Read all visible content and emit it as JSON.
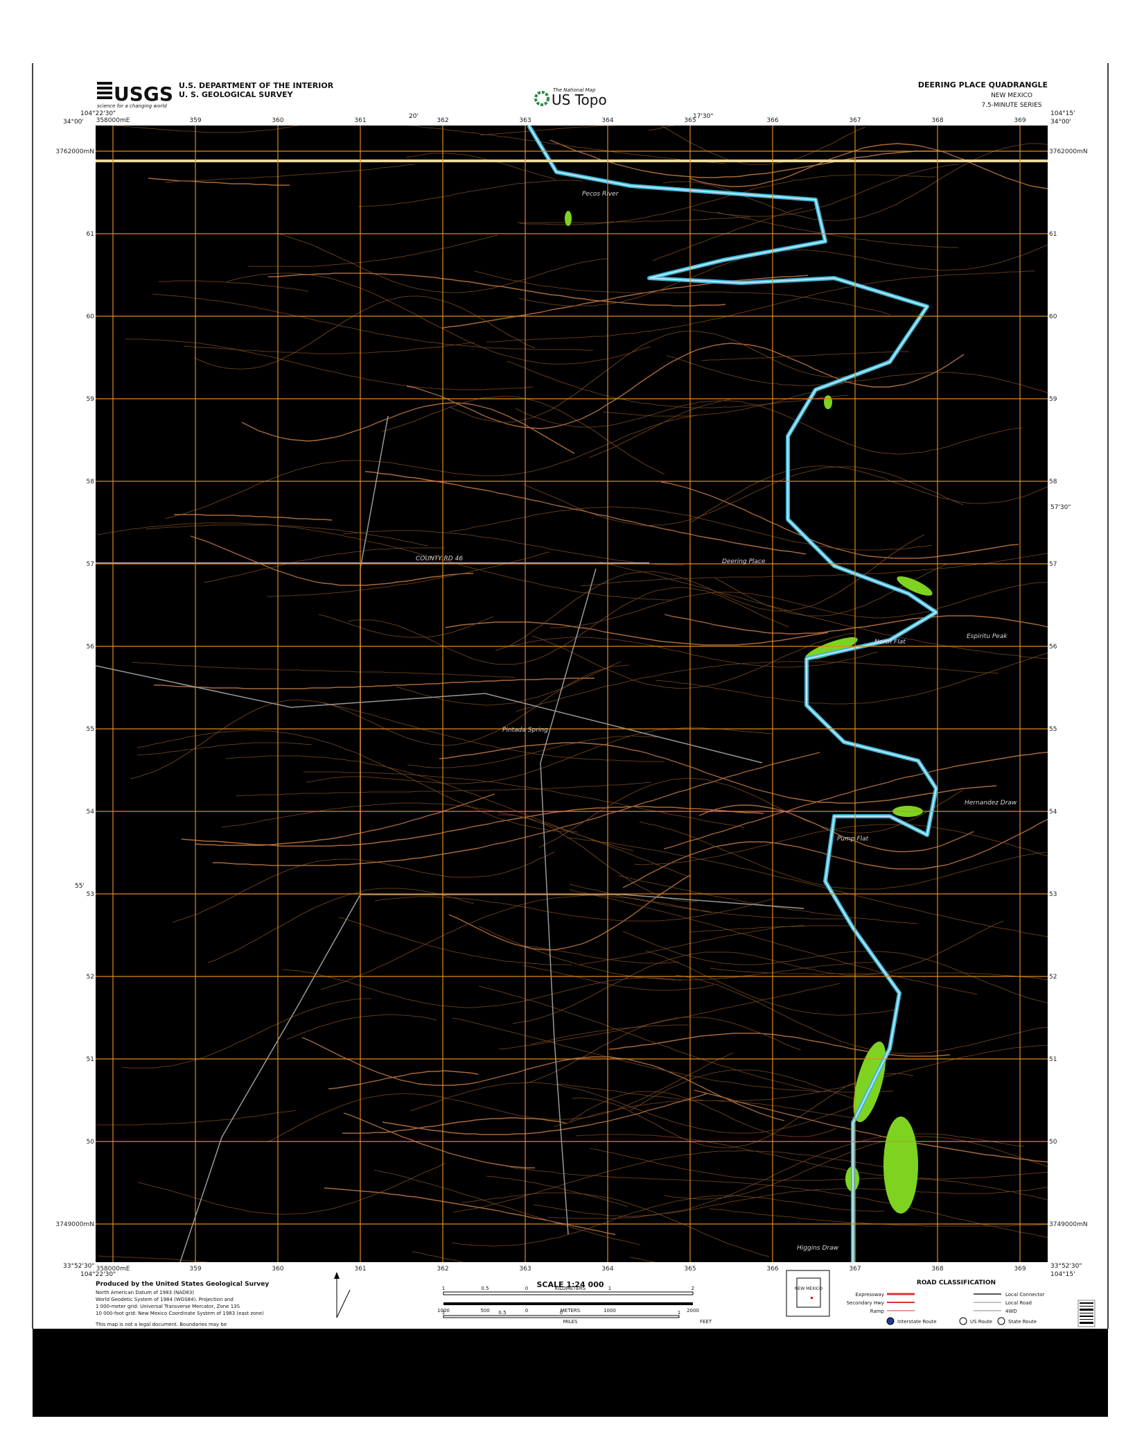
{
  "header": {
    "usgs": "USGS",
    "usgs_tagline": "science for a changing world",
    "agency": [
      "U.S. DEPARTMENT OF THE INTERIOR",
      "U. S. GEOLOGICAL SURVEY"
    ],
    "national_map": "The National Map",
    "us_topo": "US Topo",
    "quadrangle": "DEERING PLACE QUADRANGLE",
    "state": "NEW MEXICO",
    "series": "7.5-MINUTE SERIES"
  },
  "corners": {
    "nw_lon": "104°22'30\"",
    "nw_lat": "34°00'",
    "ne_lon": "104°15'",
    "ne_lat": "34°00'",
    "sw_lat": "33°52'30\"",
    "sw_lon": "104°22'30\"",
    "se_lat": "33°52'30\"",
    "se_lon": "104°15'"
  },
  "grid": {
    "easting": [
      "358000mE",
      "359",
      "360",
      "361",
      "362",
      "363",
      "364",
      "365",
      "366",
      "367",
      "368",
      "369"
    ],
    "northing": [
      "3762000mN",
      "61",
      "60",
      "59",
      "58",
      "57",
      "56",
      "55",
      "54",
      "53",
      "52",
      "51",
      "50",
      "3749000mN"
    ],
    "minutes_top": [
      "20'",
      "17'30\""
    ],
    "minutes_side": [
      "57'30\"",
      "55'"
    ]
  },
  "places": [
    "Deering Place",
    "North Flat",
    "Pump Flat",
    "Hernandez Draw",
    "Pecos River",
    "Higgins Draw",
    "Espiritu Peak",
    "Pintada Spring",
    "COUNTY RD 46"
  ],
  "footer": {
    "produced": "Produced by the United States Geological Survey",
    "notes": [
      "North American Datum of 1983 (NAD83)",
      "World Geodetic System of 1984 (WGS84). Projection and",
      "1 000-meter grid: Universal Transverse Mercator, Zone 13S",
      "10 000-foot grid: New Mexico Coordinate System of 1983 (east zone)"
    ],
    "legal": "This map is not a legal document. Boundaries may be",
    "scale": "SCALE 1:24 000",
    "km_unit": "KILOMETERS",
    "m_unit": "METERS",
    "mi_unit": "MILES",
    "ft_unit": "FEET",
    "km_labels": [
      "1",
      "0.5",
      "0",
      "1",
      "2"
    ],
    "m_labels": [
      "1000",
      "500",
      "0",
      "1000",
      "2000"
    ],
    "mi_labels": [
      "1",
      "0.5",
      "0",
      "1"
    ],
    "inset_state": "NEW MEXICO",
    "road_title": "ROAD CLASSIFICATION",
    "roads": [
      "Expressway",
      "Secondary Hwy",
      "Ramp",
      "Local Connector",
      "Local Road",
      "4WD"
    ],
    "shields": [
      "Interstate Route",
      "US Route",
      "State Route"
    ]
  }
}
